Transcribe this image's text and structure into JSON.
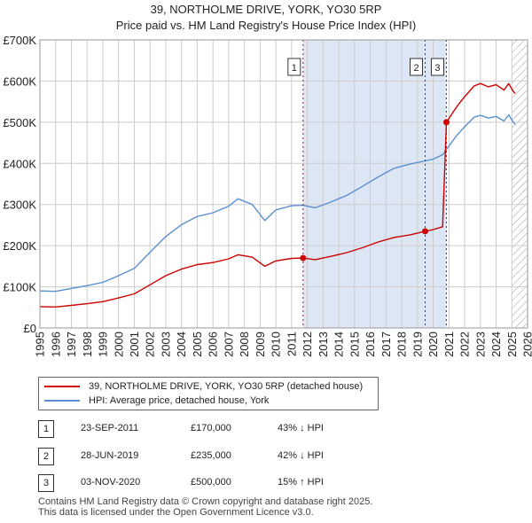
{
  "title": {
    "line1": "39, NORTHOLME DRIVE, YORK, YO30 5RP",
    "line2": "Price paid vs. HM Land Registry's House Price Index (HPI)"
  },
  "colors": {
    "price": "#cc0000",
    "hpi": "#5b8fd0",
    "shade": "#dde6f5",
    "grid": "#cccccc",
    "marker": "#cc0000"
  },
  "chart_data": {
    "type": "line",
    "title": "Price paid vs. HM Land Registry's House Price Index (HPI)",
    "xlabel": "",
    "ylabel": "",
    "xlim": [
      1995,
      2026
    ],
    "ylim": [
      0,
      700000
    ],
    "y_ticks": [
      0,
      100000,
      200000,
      300000,
      400000,
      500000,
      600000,
      700000
    ],
    "y_tick_labels": [
      "£0",
      "£100K",
      "£200K",
      "£300K",
      "£400K",
      "£500K",
      "£600K",
      "£700K"
    ],
    "x_ticks": [
      1995,
      1996,
      1997,
      1998,
      1999,
      2000,
      2001,
      2002,
      2003,
      2004,
      2005,
      2006,
      2007,
      2008,
      2009,
      2010,
      2011,
      2012,
      2013,
      2014,
      2015,
      2016,
      2017,
      2018,
      2019,
      2020,
      2021,
      2022,
      2023,
      2024,
      2025,
      2026
    ],
    "x_tick_labels": [
      "1995",
      "1996",
      "1997",
      "1998",
      "1999",
      "2000",
      "2001",
      "2002",
      "2003",
      "2004",
      "2005",
      "2006",
      "2007",
      "2008",
      "2009",
      "2010",
      "2011",
      "2012",
      "2013",
      "2014",
      "2015",
      "2016",
      "2017",
      "2018",
      "2019",
      "2020",
      "2021",
      "2022",
      "2023",
      "2024",
      "2025",
      "2026"
    ],
    "grid": true,
    "series": [
      {
        "name": "39, NORTHOLME DRIVE, YORK, YO30 5RP (detached house)",
        "x": [
          1995.0,
          1996.0,
          1997.0,
          1998.0,
          1999.0,
          2000.0,
          2001.0,
          2002.0,
          2003.0,
          2004.0,
          2005.0,
          2006.0,
          2007.0,
          2007.6,
          2008.5,
          2009.3,
          2010.0,
          2011.0,
          2011.73,
          2012.5,
          2013.5,
          2014.5,
          2015.5,
          2016.5,
          2017.5,
          2018.5,
          2019.49,
          2020.0,
          2020.6,
          2020.84,
          2021.5,
          2022.0,
          2022.6,
          2023.0,
          2023.5,
          2024.0,
          2024.5,
          2024.8,
          2025.0,
          2025.2
        ],
        "y": [
          52000,
          51000,
          55000,
          59000,
          64000,
          73000,
          83000,
          105000,
          127000,
          143000,
          154000,
          159000,
          168000,
          178000,
          172000,
          150000,
          163000,
          169000,
          170000,
          166000,
          174000,
          183000,
          195000,
          209000,
          220000,
          226000,
          235000,
          239000,
          246000,
          500000,
          538000,
          562000,
          588000,
          594000,
          586000,
          591000,
          578000,
          594000,
          580000,
          570000
        ]
      },
      {
        "name": "HPI: Average price, detached house, York",
        "x": [
          1995.0,
          1996.0,
          1997.0,
          1998.0,
          1999.0,
          2000.0,
          2001.0,
          2002.0,
          2003.0,
          2004.0,
          2005.0,
          2006.0,
          2007.0,
          2007.6,
          2008.5,
          2009.3,
          2010.0,
          2011.0,
          2011.73,
          2012.5,
          2013.5,
          2014.5,
          2015.5,
          2016.5,
          2017.5,
          2018.5,
          2019.49,
          2020.0,
          2020.6,
          2020.84,
          2021.5,
          2022.0,
          2022.6,
          2023.0,
          2023.5,
          2024.0,
          2024.5,
          2024.8,
          2025.0,
          2025.2
        ],
        "y": [
          90000,
          89000,
          96000,
          103000,
          111000,
          127000,
          145000,
          184000,
          222000,
          251000,
          271000,
          280000,
          296000,
          314000,
          300000,
          261000,
          287000,
          297000,
          298000,
          292000,
          306000,
          322000,
          344000,
          367000,
          388000,
          398000,
          406000,
          410000,
          421000,
          434000,
          468000,
          489000,
          512000,
          517000,
          510000,
          514000,
          503000,
          518000,
          505000,
          495000
        ]
      }
    ],
    "sales": [
      {
        "id": "1",
        "x": 2011.73,
        "price": 170000
      },
      {
        "id": "2",
        "x": 2019.49,
        "price": 235000
      },
      {
        "id": "3",
        "x": 2020.84,
        "price": 500000
      }
    ],
    "hatch_from": 2025.0,
    "legend_position": "below"
  },
  "legend": {
    "price_label": "39, NORTHOLME DRIVE, YORK, YO30 5RP (detached house)",
    "hpi_label": "HPI: Average price, detached house, York"
  },
  "transactions": [
    {
      "id": "1",
      "date": "23-SEP-2011",
      "price": "£170,000",
      "hpi": "43% ↓ HPI"
    },
    {
      "id": "2",
      "date": "28-JUN-2019",
      "price": "£235,000",
      "hpi": "42% ↓ HPI"
    },
    {
      "id": "3",
      "date": "03-NOV-2020",
      "price": "£500,000",
      "hpi": "15% ↑ HPI"
    }
  ],
  "footer": {
    "line1": "Contains HM Land Registry data © Crown copyright and database right 2025.",
    "line2": "This data is licensed under the Open Government Licence v3.0."
  }
}
